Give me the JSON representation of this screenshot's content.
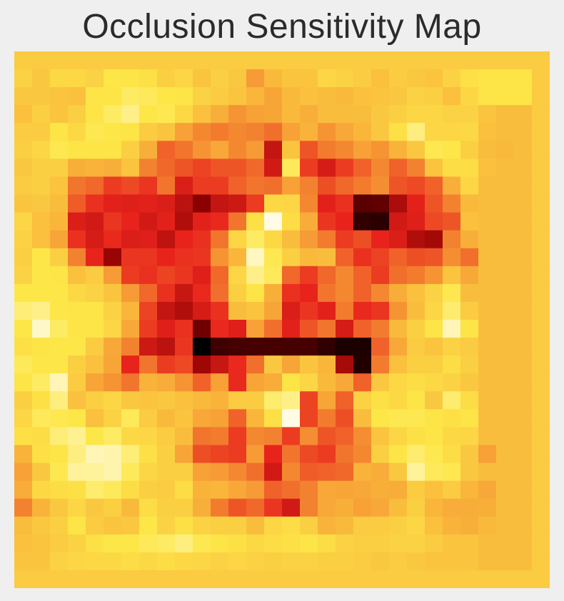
{
  "chart_data": {
    "type": "heatmap",
    "title": "Occlusion Sensitivity Map",
    "colormap": "hot",
    "colormap_stops": [
      "#000000",
      "#8b0000",
      "#e8231c",
      "#f7a136",
      "#fde748",
      "#ffffff"
    ],
    "value_range": [
      0,
      1
    ],
    "grid": false,
    "rows": 30,
    "cols": 30,
    "values": [
      [
        0.72,
        0.72,
        0.72,
        0.72,
        0.72,
        0.72,
        0.72,
        0.72,
        0.72,
        0.72,
        0.72,
        0.72,
        0.72,
        0.72,
        0.72,
        0.72,
        0.72,
        0.72,
        0.72,
        0.72,
        0.72,
        0.72,
        0.72,
        0.72,
        0.72,
        0.72,
        0.72,
        0.72,
        0.72,
        0.72
      ],
      [
        0.74,
        0.71,
        0.76,
        0.76,
        0.74,
        0.8,
        0.79,
        0.78,
        0.73,
        0.75,
        0.7,
        0.73,
        0.71,
        0.59,
        0.67,
        0.7,
        0.7,
        0.75,
        0.74,
        0.72,
        0.69,
        0.72,
        0.71,
        0.7,
        0.74,
        0.78,
        0.79,
        0.79,
        0.79,
        0.72
      ],
      [
        0.71,
        0.71,
        0.7,
        0.69,
        0.79,
        0.79,
        0.83,
        0.82,
        0.8,
        0.79,
        0.74,
        0.72,
        0.7,
        0.66,
        0.61,
        0.67,
        0.69,
        0.68,
        0.67,
        0.69,
        0.7,
        0.71,
        0.74,
        0.73,
        0.69,
        0.75,
        0.79,
        0.79,
        0.79,
        0.72
      ],
      [
        0.69,
        0.73,
        0.7,
        0.73,
        0.79,
        0.83,
        0.87,
        0.8,
        0.81,
        0.76,
        0.69,
        0.64,
        0.58,
        0.6,
        0.61,
        0.67,
        0.64,
        0.68,
        0.68,
        0.68,
        0.71,
        0.73,
        0.75,
        0.75,
        0.74,
        0.74,
        0.7,
        0.68,
        0.68,
        0.72
      ],
      [
        0.72,
        0.72,
        0.79,
        0.76,
        0.81,
        0.8,
        0.79,
        0.72,
        0.7,
        0.6,
        0.56,
        0.54,
        0.56,
        0.55,
        0.52,
        0.6,
        0.65,
        0.58,
        0.62,
        0.66,
        0.71,
        0.78,
        0.86,
        0.75,
        0.75,
        0.76,
        0.69,
        0.68,
        0.68,
        0.72
      ],
      [
        0.73,
        0.75,
        0.81,
        0.79,
        0.79,
        0.79,
        0.73,
        0.64,
        0.5,
        0.53,
        0.58,
        0.62,
        0.56,
        0.59,
        0.32,
        0.7,
        0.48,
        0.54,
        0.56,
        0.6,
        0.58,
        0.65,
        0.71,
        0.81,
        0.8,
        0.73,
        0.68,
        0.67,
        0.68,
        0.72
      ],
      [
        0.71,
        0.73,
        0.73,
        0.64,
        0.65,
        0.64,
        0.7,
        0.55,
        0.51,
        0.48,
        0.45,
        0.48,
        0.48,
        0.51,
        0.35,
        0.82,
        0.44,
        0.36,
        0.44,
        0.5,
        0.56,
        0.5,
        0.55,
        0.7,
        0.77,
        0.77,
        0.69,
        0.68,
        0.68,
        0.72
      ],
      [
        0.72,
        0.73,
        0.7,
        0.53,
        0.51,
        0.44,
        0.46,
        0.43,
        0.53,
        0.37,
        0.44,
        0.44,
        0.5,
        0.53,
        0.52,
        0.6,
        0.55,
        0.47,
        0.51,
        0.54,
        0.57,
        0.48,
        0.46,
        0.5,
        0.64,
        0.75,
        0.68,
        0.68,
        0.68,
        0.72
      ],
      [
        0.7,
        0.71,
        0.68,
        0.49,
        0.42,
        0.39,
        0.38,
        0.39,
        0.37,
        0.3,
        0.2,
        0.32,
        0.34,
        0.44,
        0.76,
        0.75,
        0.56,
        0.39,
        0.42,
        0.13,
        0.14,
        0.27,
        0.39,
        0.48,
        0.55,
        0.67,
        0.68,
        0.68,
        0.68,
        0.72
      ],
      [
        0.75,
        0.69,
        0.66,
        0.37,
        0.35,
        0.43,
        0.4,
        0.35,
        0.39,
        0.28,
        0.39,
        0.41,
        0.53,
        0.78,
        0.97,
        0.77,
        0.63,
        0.43,
        0.4,
        0.07,
        0.06,
        0.35,
        0.38,
        0.46,
        0.48,
        0.69,
        0.68,
        0.68,
        0.68,
        0.72
      ],
      [
        0.74,
        0.69,
        0.61,
        0.42,
        0.36,
        0.41,
        0.37,
        0.38,
        0.31,
        0.4,
        0.42,
        0.53,
        0.75,
        0.83,
        0.76,
        0.68,
        0.59,
        0.54,
        0.44,
        0.47,
        0.4,
        0.37,
        0.28,
        0.25,
        0.55,
        0.64,
        0.68,
        0.68,
        0.68,
        0.72
      ],
      [
        0.73,
        0.8,
        0.73,
        0.55,
        0.4,
        0.23,
        0.43,
        0.43,
        0.4,
        0.42,
        0.43,
        0.58,
        0.66,
        0.93,
        0.81,
        0.73,
        0.67,
        0.68,
        0.5,
        0.42,
        0.45,
        0.5,
        0.47,
        0.48,
        0.57,
        0.52,
        0.68,
        0.68,
        0.68,
        0.72
      ],
      [
        0.74,
        0.8,
        0.79,
        0.69,
        0.72,
        0.59,
        0.44,
        0.42,
        0.45,
        0.43,
        0.38,
        0.51,
        0.75,
        0.87,
        0.82,
        0.51,
        0.44,
        0.51,
        0.56,
        0.5,
        0.44,
        0.52,
        0.54,
        0.58,
        0.7,
        0.62,
        0.68,
        0.68,
        0.68,
        0.72
      ],
      [
        0.8,
        0.8,
        0.8,
        0.76,
        0.74,
        0.7,
        0.59,
        0.51,
        0.42,
        0.33,
        0.41,
        0.52,
        0.73,
        0.79,
        0.64,
        0.42,
        0.4,
        0.53,
        0.56,
        0.5,
        0.56,
        0.63,
        0.69,
        0.74,
        0.81,
        0.68,
        0.68,
        0.68,
        0.68,
        0.72
      ],
      [
        0.85,
        0.87,
        0.8,
        0.79,
        0.79,
        0.74,
        0.66,
        0.45,
        0.32,
        0.28,
        0.36,
        0.42,
        0.68,
        0.7,
        0.61,
        0.37,
        0.43,
        0.39,
        0.54,
        0.41,
        0.43,
        0.58,
        0.68,
        0.75,
        0.84,
        0.72,
        0.68,
        0.68,
        0.68,
        0.72
      ],
      [
        0.8,
        0.94,
        0.83,
        0.79,
        0.79,
        0.75,
        0.62,
        0.44,
        0.38,
        0.42,
        0.16,
        0.41,
        0.38,
        0.6,
        0.52,
        0.39,
        0.48,
        0.53,
        0.36,
        0.5,
        0.54,
        0.67,
        0.73,
        0.79,
        0.92,
        0.79,
        0.68,
        0.68,
        0.68,
        0.72
      ],
      [
        0.78,
        0.79,
        0.8,
        0.8,
        0.72,
        0.62,
        0.55,
        0.34,
        0.3,
        0.43,
        0.0,
        0.09,
        0.1,
        0.1,
        0.1,
        0.1,
        0.1,
        0.07,
        0.04,
        0.04,
        0.5,
        0.62,
        0.72,
        0.7,
        0.74,
        0.72,
        0.68,
        0.68,
        0.68,
        0.72
      ],
      [
        0.82,
        0.8,
        0.8,
        0.73,
        0.69,
        0.61,
        0.4,
        0.53,
        0.44,
        0.46,
        0.24,
        0.33,
        0.41,
        0.52,
        0.71,
        0.61,
        0.7,
        0.66,
        0.26,
        0.05,
        0.54,
        0.69,
        0.73,
        0.73,
        0.77,
        0.73,
        0.68,
        0.68,
        0.68,
        0.72
      ],
      [
        0.79,
        0.83,
        0.92,
        0.72,
        0.61,
        0.58,
        0.53,
        0.65,
        0.63,
        0.58,
        0.5,
        0.6,
        0.41,
        0.61,
        0.63,
        0.79,
        0.75,
        0.67,
        0.62,
        0.5,
        0.71,
        0.76,
        0.77,
        0.76,
        0.74,
        0.71,
        0.68,
        0.68,
        0.68,
        0.72
      ],
      [
        0.73,
        0.78,
        0.86,
        0.69,
        0.73,
        0.75,
        0.71,
        0.7,
        0.71,
        0.69,
        0.67,
        0.65,
        0.72,
        0.72,
        0.84,
        0.87,
        0.45,
        0.61,
        0.5,
        0.74,
        0.78,
        0.76,
        0.79,
        0.71,
        0.84,
        0.77,
        0.68,
        0.68,
        0.68,
        0.72
      ],
      [
        0.75,
        0.82,
        0.81,
        0.8,
        0.69,
        0.74,
        0.82,
        0.72,
        0.67,
        0.7,
        0.62,
        0.6,
        0.5,
        0.66,
        0.78,
        0.97,
        0.45,
        0.54,
        0.47,
        0.68,
        0.8,
        0.81,
        0.81,
        0.79,
        0.78,
        0.79,
        0.68,
        0.68,
        0.68,
        0.72
      ],
      [
        0.78,
        0.77,
        0.85,
        0.88,
        0.8,
        0.83,
        0.76,
        0.75,
        0.72,
        0.68,
        0.53,
        0.54,
        0.44,
        0.56,
        0.55,
        0.44,
        0.57,
        0.48,
        0.5,
        0.57,
        0.7,
        0.75,
        0.78,
        0.79,
        0.76,
        0.75,
        0.68,
        0.68,
        0.68,
        0.72
      ],
      [
        0.65,
        0.78,
        0.79,
        0.86,
        0.92,
        0.91,
        0.85,
        0.78,
        0.73,
        0.61,
        0.47,
        0.45,
        0.44,
        0.59,
        0.4,
        0.53,
        0.46,
        0.44,
        0.53,
        0.56,
        0.73,
        0.79,
        0.84,
        0.81,
        0.77,
        0.71,
        0.6,
        0.68,
        0.68,
        0.72
      ],
      [
        0.6,
        0.71,
        0.81,
        0.89,
        0.89,
        0.91,
        0.82,
        0.75,
        0.73,
        0.73,
        0.6,
        0.59,
        0.56,
        0.52,
        0.35,
        0.56,
        0.49,
        0.5,
        0.51,
        0.65,
        0.63,
        0.71,
        0.89,
        0.82,
        0.81,
        0.71,
        0.68,
        0.68,
        0.68,
        0.72
      ],
      [
        0.63,
        0.76,
        0.77,
        0.78,
        0.84,
        0.82,
        0.77,
        0.73,
        0.72,
        0.77,
        0.65,
        0.66,
        0.62,
        0.59,
        0.5,
        0.52,
        0.55,
        0.62,
        0.61,
        0.62,
        0.64,
        0.63,
        0.72,
        0.69,
        0.72,
        0.66,
        0.62,
        0.68,
        0.68,
        0.72
      ],
      [
        0.55,
        0.65,
        0.71,
        0.75,
        0.71,
        0.73,
        0.67,
        0.77,
        0.73,
        0.73,
        0.64,
        0.54,
        0.48,
        0.51,
        0.43,
        0.35,
        0.55,
        0.62,
        0.64,
        0.6,
        0.62,
        0.68,
        0.73,
        0.66,
        0.63,
        0.63,
        0.64,
        0.68,
        0.68,
        0.72
      ],
      [
        0.68,
        0.71,
        0.73,
        0.79,
        0.72,
        0.7,
        0.71,
        0.8,
        0.74,
        0.78,
        0.74,
        0.73,
        0.73,
        0.68,
        0.75,
        0.77,
        0.73,
        0.65,
        0.67,
        0.72,
        0.72,
        0.73,
        0.75,
        0.69,
        0.65,
        0.64,
        0.67,
        0.68,
        0.68,
        0.72
      ],
      [
        0.69,
        0.7,
        0.72,
        0.74,
        0.78,
        0.8,
        0.8,
        0.82,
        0.83,
        0.86,
        0.81,
        0.79,
        0.78,
        0.76,
        0.77,
        0.78,
        0.79,
        0.77,
        0.74,
        0.73,
        0.73,
        0.74,
        0.74,
        0.72,
        0.7,
        0.7,
        0.68,
        0.68,
        0.68,
        0.72
      ],
      [
        0.7,
        0.7,
        0.74,
        0.75,
        0.76,
        0.76,
        0.77,
        0.76,
        0.77,
        0.76,
        0.75,
        0.74,
        0.75,
        0.74,
        0.73,
        0.74,
        0.74,
        0.73,
        0.73,
        0.72,
        0.71,
        0.72,
        0.71,
        0.7,
        0.7,
        0.7,
        0.68,
        0.68,
        0.68,
        0.72
      ],
      [
        0.72,
        0.72,
        0.72,
        0.72,
        0.72,
        0.72,
        0.72,
        0.72,
        0.72,
        0.72,
        0.72,
        0.72,
        0.72,
        0.72,
        0.72,
        0.72,
        0.72,
        0.72,
        0.72,
        0.72,
        0.72,
        0.72,
        0.72,
        0.72,
        0.72,
        0.72,
        0.72,
        0.72,
        0.72,
        0.72
      ]
    ]
  }
}
